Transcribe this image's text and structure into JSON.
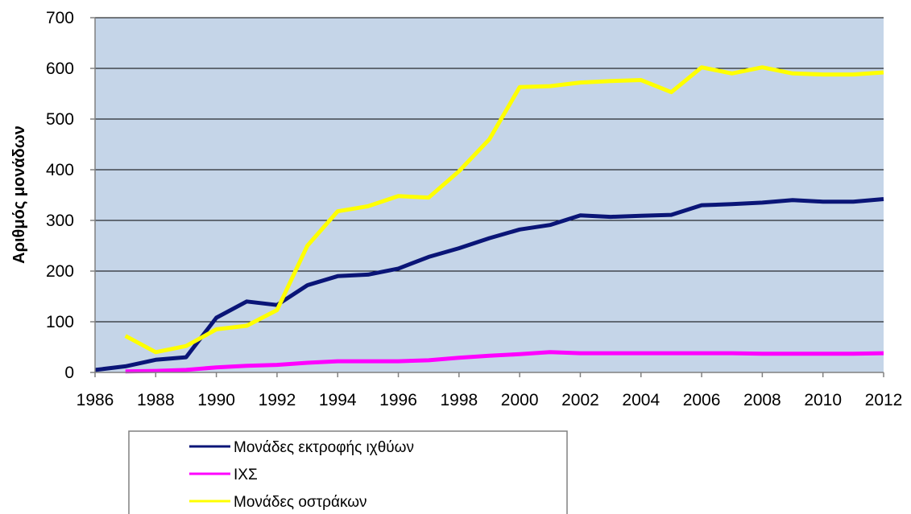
{
  "chart_data": {
    "type": "line",
    "title": "",
    "xlabel": "",
    "ylabel": "Αριθμός μονάδων",
    "xlim": [
      1986,
      2012
    ],
    "ylim": [
      0,
      700
    ],
    "x_ticks": [
      1986,
      1988,
      1990,
      1992,
      1994,
      1996,
      1998,
      2000,
      2002,
      2004,
      2006,
      2008,
      2010,
      2012
    ],
    "y_ticks": [
      0,
      100,
      200,
      300,
      400,
      500,
      600,
      700
    ],
    "grid": "horizontal",
    "legend_position": "bottom-left",
    "plot_background": "#c5d5e8",
    "series": [
      {
        "name": "Μονάδες εκτροφής ιχθύων",
        "color": "#0a1577",
        "x": [
          1986,
          1987,
          1988,
          1989,
          1990,
          1991,
          1992,
          1993,
          1994,
          1995,
          1996,
          1997,
          1998,
          1999,
          2000,
          2001,
          2002,
          2003,
          2004,
          2005,
          2006,
          2007,
          2008,
          2009,
          2010,
          2011,
          2012
        ],
        "values": [
          5,
          12,
          25,
          30,
          108,
          140,
          133,
          172,
          190,
          193,
          205,
          228,
          245,
          265,
          282,
          291,
          310,
          307,
          309,
          311,
          330,
          332,
          335,
          340,
          337,
          337,
          342
        ]
      },
      {
        "name": "ΙΧΣ",
        "color": "#ff00ff",
        "x": [
          1987,
          1988,
          1989,
          1990,
          1991,
          1992,
          1993,
          1994,
          1995,
          1996,
          1997,
          1998,
          1999,
          2000,
          2001,
          2002,
          2003,
          2004,
          2005,
          2006,
          2007,
          2008,
          2009,
          2010,
          2011,
          2012
        ],
        "values": [
          2,
          3,
          5,
          10,
          13,
          15,
          19,
          22,
          22,
          22,
          24,
          29,
          33,
          36,
          40,
          38,
          38,
          38,
          38,
          38,
          38,
          37,
          37,
          37,
          37,
          38
        ]
      },
      {
        "name": "Μονάδες οστράκων",
        "color": "#ffff00",
        "x": [
          1987,
          1988,
          1989,
          1990,
          1991,
          1992,
          1993,
          1994,
          1995,
          1996,
          1997,
          1998,
          1999,
          2000,
          2001,
          2002,
          2003,
          2004,
          2005,
          2006,
          2007,
          2008,
          2009,
          2010,
          2011,
          2012
        ],
        "values": [
          72,
          40,
          52,
          85,
          92,
          123,
          250,
          318,
          328,
          348,
          345,
          397,
          460,
          563,
          565,
          572,
          575,
          577,
          553,
          602,
          590,
          602,
          590,
          588,
          588,
          592
        ]
      }
    ]
  }
}
